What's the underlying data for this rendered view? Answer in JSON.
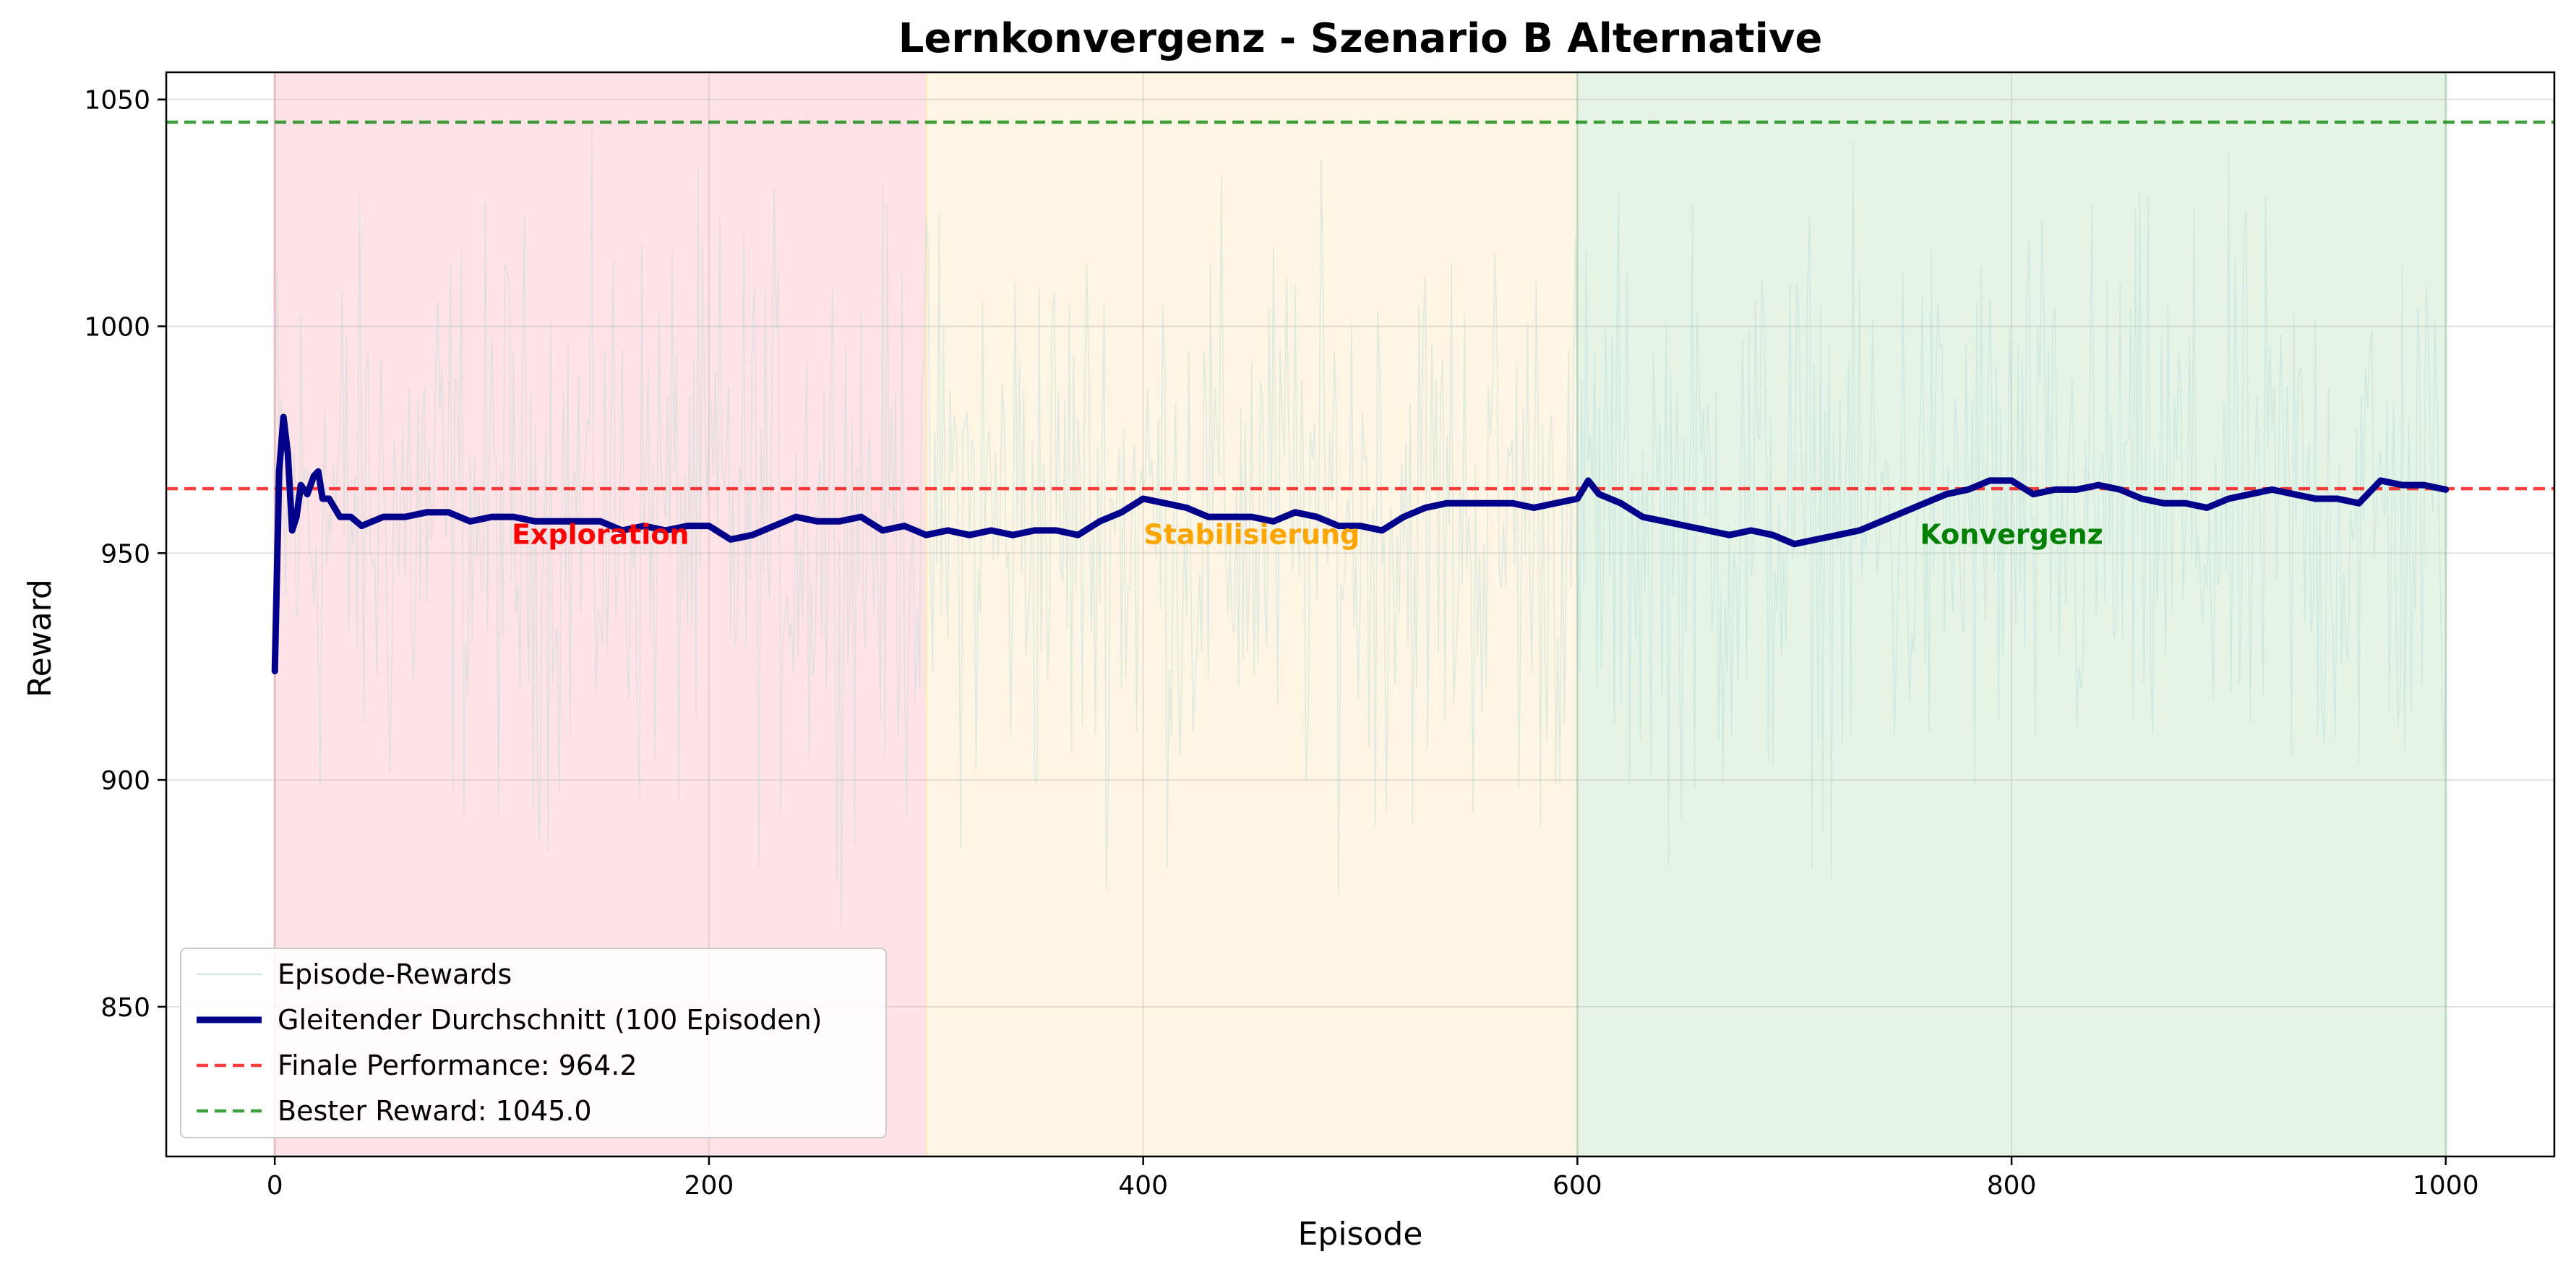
{
  "chart_data": {
    "type": "line",
    "title": "Lernkonvergenz - Szenario B Alternative",
    "xlabel": "Episode",
    "ylabel": "Reward",
    "xlim": [
      -50,
      1050
    ],
    "ylim": [
      817,
      1056
    ],
    "xticks": [
      0,
      200,
      400,
      600,
      800,
      1000
    ],
    "yticks": [
      850,
      900,
      950,
      1000,
      1050
    ],
    "grid": true,
    "legend_position": "lower-left",
    "phases": [
      {
        "label": "Exploration",
        "start": 0,
        "end": 300,
        "fill": "#ffc0c8",
        "text_color": "#ff0000",
        "label_x": 150,
        "label_y": 952
      },
      {
        "label": "Stabilisierung",
        "start": 300,
        "end": 600,
        "fill": "#fde8c4",
        "text_color": "#ffa500",
        "label_x": 450,
        "label_y": 952
      },
      {
        "label": "Konvergenz",
        "start": 600,
        "end": 1000,
        "fill": "#c8e6c8",
        "text_color": "#008000",
        "label_x": 800,
        "label_y": 952
      }
    ],
    "hlines": [
      {
        "name": "Finale Performance: 964.2",
        "value": 964.2,
        "color": "#ff0000"
      },
      {
        "name": "Bester Reward: 1045.0",
        "value": 1045.0,
        "color": "#008000"
      }
    ],
    "raw_series": {
      "name": "Episode-Rewards",
      "episodes": 1000,
      "mean": 958,
      "range": [
        828,
        1045
      ],
      "color": "#a8d8d8"
    },
    "moving_average": {
      "name": "Gleitender Durchschnitt (100 Episoden)",
      "color": "#00008b",
      "x": [
        0,
        2,
        4,
        6,
        8,
        10,
        12,
        15,
        18,
        20,
        22,
        25,
        30,
        35,
        40,
        50,
        60,
        70,
        80,
        90,
        100,
        110,
        120,
        130,
        140,
        150,
        160,
        170,
        180,
        190,
        200,
        210,
        220,
        230,
        240,
        250,
        260,
        270,
        280,
        290,
        300,
        310,
        320,
        330,
        340,
        350,
        360,
        370,
        380,
        390,
        400,
        410,
        420,
        430,
        440,
        450,
        460,
        470,
        480,
        490,
        500,
        510,
        520,
        530,
        540,
        550,
        560,
        570,
        580,
        590,
        600,
        605,
        610,
        620,
        630,
        640,
        650,
        660,
        670,
        680,
        690,
        700,
        710,
        720,
        730,
        740,
        750,
        760,
        770,
        780,
        790,
        800,
        810,
        820,
        830,
        840,
        850,
        860,
        870,
        880,
        890,
        900,
        910,
        920,
        930,
        940,
        950,
        960,
        970,
        980,
        990,
        1000
      ],
      "y": [
        924,
        968,
        980,
        972,
        955,
        958,
        965,
        963,
        967,
        968,
        962,
        962,
        958,
        958,
        956,
        958,
        958,
        959,
        959,
        957,
        958,
        958,
        957,
        957,
        957,
        957,
        955,
        956,
        955,
        956,
        956,
        953,
        954,
        956,
        958,
        957,
        957,
        958,
        955,
        956,
        954,
        955,
        954,
        955,
        954,
        955,
        955,
        954,
        957,
        959,
        962,
        961,
        960,
        958,
        958,
        958,
        957,
        959,
        958,
        956,
        956,
        955,
        958,
        960,
        961,
        961,
        961,
        961,
        960,
        961,
        962,
        966,
        963,
        961,
        958,
        957,
        956,
        955,
        954,
        955,
        954,
        952,
        953,
        954,
        955,
        957,
        959,
        961,
        963,
        964,
        966,
        966,
        963,
        964,
        964,
        965,
        964,
        962,
        961,
        961,
        960,
        962,
        963,
        964,
        963,
        962,
        962,
        961,
        966,
        965,
        965,
        964
      ]
    }
  },
  "legend": {
    "items": [
      {
        "label": "Episode-Rewards"
      },
      {
        "label": "Gleitender Durchschnitt (100 Episoden)"
      },
      {
        "label": "Finale Performance: 964.2"
      },
      {
        "label": "Bester Reward: 1045.0"
      }
    ]
  }
}
